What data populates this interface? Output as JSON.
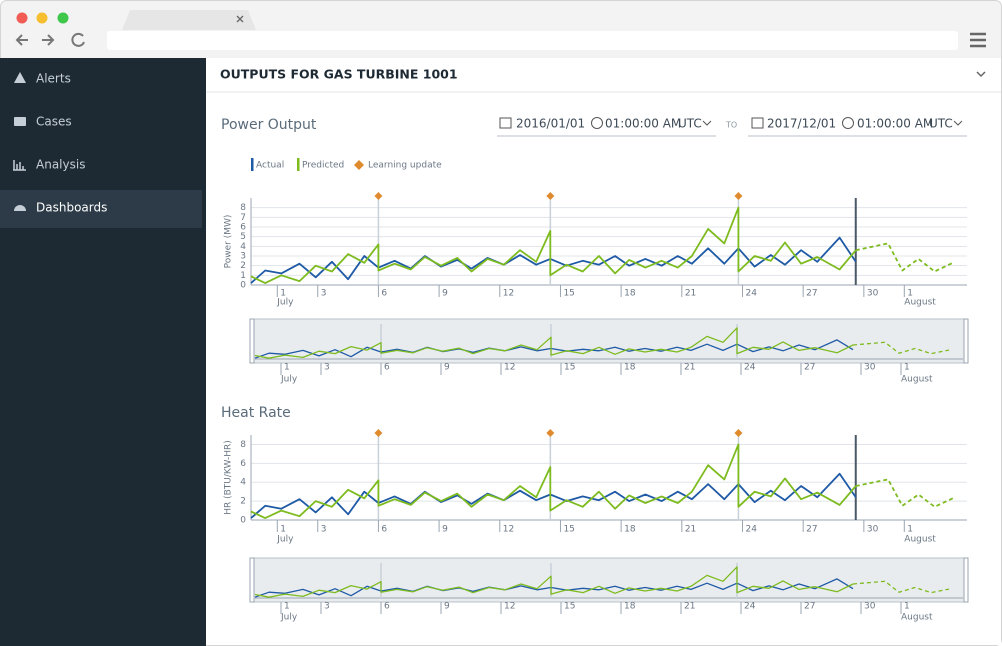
{
  "sidebar": {
    "items": [
      "Alerts",
      "Cases",
      "Analysis",
      "Dashboards"
    ]
  },
  "header": {
    "title": "OUTPUTS FOR GAS TURBINE 1001"
  },
  "date_range": {
    "from": {
      "date": "2016/01/01",
      "time": "01:00:00 AM",
      "zone": "UTC"
    },
    "separator": "TO",
    "to": {
      "date": "2017/12/01",
      "time": "01:00:00 AM",
      "zone": "UTC"
    }
  },
  "chart_data": [
    {
      "type": "line",
      "title": "Power Output",
      "y_label": "Power (MW)",
      "updates_label": "Learning update",
      "xlim": [
        -0.3,
        35.1
      ],
      "xticks": [
        1,
        3,
        6,
        9,
        12,
        15,
        18,
        21,
        24,
        27,
        30,
        {
          "value": 32,
          "label": "1"
        }
      ],
      "month_labels": [
        {
          "value": 1,
          "label": "July"
        },
        {
          "value": 32,
          "label": "August"
        }
      ],
      "ylim": [
        0,
        9
      ],
      "yticks": [
        0,
        1,
        2,
        3,
        4,
        5,
        6,
        7,
        8
      ],
      "grid": true,
      "updates": [
        6.0,
        14.5,
        23.8
      ],
      "now": 29.6,
      "series": [
        {
          "name": "Actual",
          "color": "#1f5aa6",
          "x": [
            -0.3,
            0.4,
            1.2,
            2.1,
            2.9,
            3.7,
            4.5,
            5.3,
            6.0,
            6.8,
            7.6,
            8.3,
            9.1,
            9.9,
            10.6,
            11.4,
            12.2,
            13.0,
            13.8,
            14.5,
            15.3,
            16.1,
            16.9,
            17.7,
            18.4,
            19.2,
            20.0,
            20.8,
            21.5,
            22.3,
            23.1,
            23.8,
            24.6,
            25.4,
            26.1,
            26.9,
            27.7,
            28.8,
            29.6
          ],
          "values": [
            0.2,
            1.5,
            1.2,
            2.2,
            0.8,
            2.4,
            0.6,
            3.0,
            1.8,
            2.5,
            1.7,
            3.0,
            1.9,
            2.6,
            1.7,
            2.8,
            2.1,
            3.1,
            2.1,
            2.7,
            2.0,
            2.5,
            2.1,
            3.0,
            2.0,
            2.7,
            2.0,
            3.0,
            2.2,
            3.8,
            2.2,
            3.8,
            1.9,
            3.1,
            2.1,
            3.6,
            2.4,
            4.9,
            2.4
          ]
        },
        {
          "name": "Predicted",
          "color": "#7dbb1f",
          "forecast": "dashed",
          "x": [
            -0.3,
            0.4,
            1.2,
            2.1,
            2.9,
            3.7,
            4.5,
            5.3,
            6.0,
            6.0,
            6.8,
            7.6,
            8.3,
            9.1,
            9.9,
            10.6,
            11.4,
            12.2,
            13.0,
            13.8,
            14.5,
            14.5,
            15.3,
            16.1,
            16.9,
            17.7,
            18.4,
            19.2,
            20.0,
            20.8,
            21.5,
            22.3,
            23.1,
            23.8,
            23.8,
            24.6,
            25.4,
            26.1,
            26.9,
            27.7,
            28.8,
            29.6,
            31.2,
            31.9,
            32.7,
            33.5,
            34.4
          ],
          "values": [
            0.9,
            0.2,
            1.0,
            0.4,
            2.0,
            1.4,
            3.2,
            2.3,
            4.2,
            1.5,
            2.2,
            1.6,
            2.9,
            2.0,
            2.8,
            1.4,
            2.7,
            2.1,
            3.6,
            2.4,
            5.6,
            1.0,
            2.1,
            1.4,
            3.0,
            1.2,
            2.6,
            1.8,
            2.5,
            1.8,
            3.0,
            5.8,
            4.3,
            8.0,
            1.4,
            3.0,
            2.5,
            4.4,
            2.2,
            2.9,
            1.6,
            3.6,
            4.3,
            1.5,
            2.7,
            1.4,
            2.3
          ]
        }
      ]
    },
    {
      "type": "line",
      "title": "Heat Rate",
      "y_label": "HR (BTU/KW-HR)",
      "xlim": [
        -0.3,
        35.1
      ],
      "xticks": [
        1,
        3,
        6,
        9,
        12,
        15,
        18,
        21,
        24,
        27,
        30,
        {
          "value": 32,
          "label": "1"
        }
      ],
      "month_labels": [
        {
          "value": 1,
          "label": "July"
        },
        {
          "value": 32,
          "label": "August"
        }
      ],
      "ylim": [
        0,
        9
      ],
      "yticks": [
        0,
        2,
        4,
        6,
        8
      ],
      "grid": true,
      "updates": [
        6.0,
        14.5,
        23.8
      ],
      "now": 29.6,
      "series": [
        {
          "color": "#1f5aa6",
          "x": [
            -0.3,
            0.4,
            1.2,
            2.1,
            2.9,
            3.7,
            4.5,
            5.3,
            6.0,
            6.8,
            7.6,
            8.3,
            9.1,
            9.9,
            10.6,
            11.4,
            12.2,
            13.0,
            13.8,
            14.5,
            15.3,
            16.1,
            16.9,
            17.7,
            18.4,
            19.2,
            20.0,
            20.8,
            21.5,
            22.3,
            23.1,
            23.8,
            24.6,
            25.4,
            26.1,
            26.9,
            27.7,
            28.8,
            29.6
          ],
          "values": [
            0.2,
            1.5,
            1.2,
            2.2,
            0.8,
            2.4,
            0.6,
            3.0,
            1.8,
            2.5,
            1.7,
            3.0,
            1.9,
            2.6,
            1.7,
            2.8,
            2.1,
            3.1,
            2.1,
            2.7,
            2.0,
            2.5,
            2.1,
            3.0,
            2.0,
            2.7,
            2.0,
            3.0,
            2.2,
            3.8,
            2.2,
            3.8,
            1.9,
            3.1,
            2.1,
            3.6,
            2.4,
            4.9,
            2.4
          ]
        },
        {
          "color": "#7dbb1f",
          "forecast": "dashed",
          "x": [
            -0.3,
            0.4,
            1.2,
            2.1,
            2.9,
            3.7,
            4.5,
            5.3,
            6.0,
            6.0,
            6.8,
            7.6,
            8.3,
            9.1,
            9.9,
            10.6,
            11.4,
            12.2,
            13.0,
            13.8,
            14.5,
            14.5,
            15.3,
            16.1,
            16.9,
            17.7,
            18.4,
            19.2,
            20.0,
            20.8,
            21.5,
            22.3,
            23.1,
            23.8,
            23.8,
            24.6,
            25.4,
            26.1,
            26.9,
            27.7,
            28.8,
            29.6,
            31.2,
            31.9,
            32.7,
            33.5,
            34.4
          ],
          "values": [
            0.9,
            0.2,
            1.0,
            0.4,
            2.0,
            1.4,
            3.2,
            2.3,
            4.2,
            1.5,
            2.2,
            1.6,
            2.9,
            2.0,
            2.8,
            1.4,
            2.7,
            2.1,
            3.6,
            2.4,
            5.6,
            1.0,
            2.1,
            1.4,
            3.0,
            1.2,
            2.6,
            1.8,
            2.5,
            1.8,
            3.0,
            5.8,
            4.3,
            8.0,
            1.4,
            3.0,
            2.5,
            4.4,
            2.2,
            2.9,
            1.6,
            3.6,
            4.3,
            1.5,
            2.7,
            1.4,
            2.3
          ]
        }
      ]
    }
  ]
}
